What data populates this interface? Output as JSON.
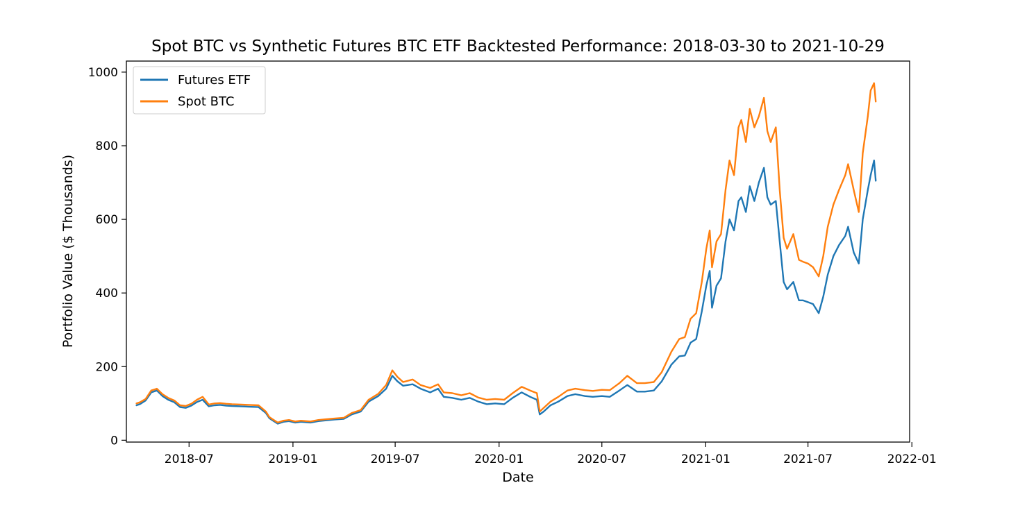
{
  "chart_data": {
    "type": "line",
    "title": "Spot BTC vs Synthetic Futures BTC ETF Backtested Performance: 2018-03-30 to 2021-10-29",
    "xlabel": "Date",
    "ylabel": "Portfolio Value ($ Thousands)",
    "x_tick_labels": [
      "2018-07",
      "2019-01",
      "2019-07",
      "2020-01",
      "2020-07",
      "2021-01",
      "2021-07",
      "2022-01"
    ],
    "x_ticks": [
      "2018-07-01",
      "2019-01-01",
      "2019-07-01",
      "2020-01-01",
      "2020-07-01",
      "2021-01-01",
      "2021-07-01",
      "2022-01-01"
    ],
    "y_ticks": [
      0,
      200,
      400,
      600,
      800,
      1000
    ],
    "xlim": [
      "2018-03-12",
      "2021-12-28"
    ],
    "ylim": [
      -5,
      1030
    ],
    "grid": false,
    "legend_position": "top-left",
    "series": [
      {
        "name": "Futures ETF",
        "color": "#1f77b4",
        "x": [
          "2018-03-30",
          "2018-04-05",
          "2018-04-15",
          "2018-04-25",
          "2018-05-05",
          "2018-05-15",
          "2018-05-25",
          "2018-06-05",
          "2018-06-15",
          "2018-06-25",
          "2018-07-05",
          "2018-07-15",
          "2018-07-25",
          "2018-08-05",
          "2018-08-15",
          "2018-08-25",
          "2018-09-05",
          "2018-09-15",
          "2018-10-01",
          "2018-10-15",
          "2018-11-01",
          "2018-11-14",
          "2018-11-20",
          "2018-11-25",
          "2018-12-05",
          "2018-12-15",
          "2018-12-25",
          "2019-01-05",
          "2019-01-15",
          "2019-02-01",
          "2019-02-15",
          "2019-03-01",
          "2019-03-15",
          "2019-04-01",
          "2019-04-15",
          "2019-05-01",
          "2019-05-15",
          "2019-06-01",
          "2019-06-15",
          "2019-06-26",
          "2019-07-05",
          "2019-07-15",
          "2019-08-01",
          "2019-08-15",
          "2019-09-01",
          "2019-09-15",
          "2019-09-25",
          "2019-10-10",
          "2019-10-26",
          "2019-11-10",
          "2019-11-25",
          "2019-12-10",
          "2019-12-25",
          "2020-01-10",
          "2020-01-25",
          "2020-02-10",
          "2020-02-25",
          "2020-03-08",
          "2020-03-13",
          "2020-03-20",
          "2020-04-01",
          "2020-04-15",
          "2020-05-01",
          "2020-05-15",
          "2020-06-01",
          "2020-06-15",
          "2020-07-01",
          "2020-07-15",
          "2020-08-01",
          "2020-08-15",
          "2020-09-01",
          "2020-09-15",
          "2020-10-01",
          "2020-10-15",
          "2020-11-01",
          "2020-11-15",
          "2020-11-25",
          "2020-12-05",
          "2020-12-15",
          "2020-12-25",
          "2021-01-02",
          "2021-01-08",
          "2021-01-12",
          "2021-01-20",
          "2021-01-28",
          "2021-02-05",
          "2021-02-12",
          "2021-02-20",
          "2021-02-28",
          "2021-03-05",
          "2021-03-13",
          "2021-03-20",
          "2021-03-28",
          "2021-04-05",
          "2021-04-14",
          "2021-04-20",
          "2021-04-26",
          "2021-05-05",
          "2021-05-12",
          "2021-05-19",
          "2021-05-25",
          "2021-06-05",
          "2021-06-15",
          "2021-06-22",
          "2021-07-01",
          "2021-07-10",
          "2021-07-20",
          "2021-07-28",
          "2021-08-05",
          "2021-08-15",
          "2021-08-25",
          "2021-09-05",
          "2021-09-10",
          "2021-09-20",
          "2021-09-29",
          "2021-10-06",
          "2021-10-15",
          "2021-10-20",
          "2021-10-26",
          "2021-10-29"
        ],
        "values": [
          95,
          98,
          108,
          130,
          135,
          120,
          110,
          103,
          90,
          88,
          94,
          104,
          110,
          92,
          95,
          96,
          94,
          93,
          92,
          91,
          90,
          74,
          60,
          55,
          45,
          50,
          52,
          48,
          50,
          48,
          52,
          54,
          56,
          58,
          70,
          78,
          105,
          120,
          140,
          175,
          160,
          148,
          152,
          140,
          130,
          140,
          118,
          115,
          110,
          115,
          105,
          98,
          100,
          98,
          115,
          130,
          118,
          110,
          70,
          78,
          95,
          105,
          120,
          125,
          120,
          118,
          120,
          118,
          135,
          150,
          132,
          132,
          135,
          160,
          205,
          228,
          230,
          265,
          275,
          350,
          420,
          460,
          360,
          420,
          440,
          540,
          600,
          570,
          650,
          660,
          620,
          690,
          650,
          700,
          740,
          660,
          640,
          650,
          540,
          430,
          410,
          430,
          380,
          380,
          375,
          370,
          345,
          390,
          450,
          500,
          530,
          555,
          580,
          510,
          480,
          600,
          680,
          720,
          760,
          705
        ],
        "labels": []
      },
      {
        "name": "Spot BTC",
        "color": "#ff7f0e",
        "x": [
          "2018-03-30",
          "2018-04-05",
          "2018-04-15",
          "2018-04-25",
          "2018-05-05",
          "2018-05-15",
          "2018-05-25",
          "2018-06-05",
          "2018-06-15",
          "2018-06-25",
          "2018-07-05",
          "2018-07-15",
          "2018-07-25",
          "2018-08-05",
          "2018-08-15",
          "2018-08-25",
          "2018-09-05",
          "2018-09-15",
          "2018-10-01",
          "2018-10-15",
          "2018-11-01",
          "2018-11-14",
          "2018-11-20",
          "2018-11-25",
          "2018-12-05",
          "2018-12-15",
          "2018-12-25",
          "2019-01-05",
          "2019-01-15",
          "2019-02-01",
          "2019-02-15",
          "2019-03-01",
          "2019-03-15",
          "2019-04-01",
          "2019-04-15",
          "2019-05-01",
          "2019-05-15",
          "2019-06-01",
          "2019-06-15",
          "2019-06-26",
          "2019-07-05",
          "2019-07-15",
          "2019-08-01",
          "2019-08-15",
          "2019-09-01",
          "2019-09-15",
          "2019-09-25",
          "2019-10-10",
          "2019-10-26",
          "2019-11-10",
          "2019-11-25",
          "2019-12-10",
          "2019-12-25",
          "2020-01-10",
          "2020-01-25",
          "2020-02-10",
          "2020-02-25",
          "2020-03-08",
          "2020-03-13",
          "2020-03-20",
          "2020-04-01",
          "2020-04-15",
          "2020-05-01",
          "2020-05-15",
          "2020-06-01",
          "2020-06-15",
          "2020-07-01",
          "2020-07-15",
          "2020-08-01",
          "2020-08-15",
          "2020-09-01",
          "2020-09-15",
          "2020-10-01",
          "2020-10-15",
          "2020-11-01",
          "2020-11-15",
          "2020-11-25",
          "2020-12-05",
          "2020-12-15",
          "2020-12-25",
          "2021-01-02",
          "2021-01-08",
          "2021-01-12",
          "2021-01-20",
          "2021-01-28",
          "2021-02-05",
          "2021-02-12",
          "2021-02-20",
          "2021-02-28",
          "2021-03-05",
          "2021-03-13",
          "2021-03-20",
          "2021-03-28",
          "2021-04-05",
          "2021-04-14",
          "2021-04-20",
          "2021-04-26",
          "2021-05-05",
          "2021-05-12",
          "2021-05-19",
          "2021-05-25",
          "2021-06-05",
          "2021-06-15",
          "2021-06-22",
          "2021-07-01",
          "2021-07-10",
          "2021-07-20",
          "2021-07-28",
          "2021-08-05",
          "2021-08-15",
          "2021-08-25",
          "2021-09-05",
          "2021-09-10",
          "2021-09-20",
          "2021-09-29",
          "2021-10-06",
          "2021-10-15",
          "2021-10-20",
          "2021-10-26",
          "2021-10-29"
        ],
        "values": [
          100,
          103,
          112,
          135,
          140,
          125,
          115,
          108,
          95,
          93,
          99,
          110,
          118,
          97,
          100,
          101,
          99,
          98,
          97,
          96,
          95,
          78,
          63,
          58,
          48,
          53,
          55,
          51,
          53,
          51,
          55,
          57,
          59,
          61,
          74,
          82,
          110,
          126,
          150,
          190,
          172,
          158,
          165,
          150,
          142,
          152,
          130,
          128,
          122,
          128,
          116,
          110,
          112,
          110,
          128,
          145,
          135,
          128,
          78,
          88,
          105,
          118,
          135,
          140,
          136,
          134,
          137,
          136,
          155,
          175,
          155,
          155,
          158,
          185,
          240,
          275,
          280,
          330,
          345,
          430,
          520,
          570,
          470,
          540,
          560,
          680,
          760,
          720,
          850,
          870,
          810,
          900,
          850,
          880,
          930,
          840,
          810,
          850,
          680,
          550,
          520,
          560,
          490,
          485,
          480,
          470,
          445,
          500,
          580,
          640,
          680,
          720,
          750,
          680,
          620,
          780,
          880,
          950,
          970,
          920
        ],
        "labels": []
      }
    ]
  }
}
